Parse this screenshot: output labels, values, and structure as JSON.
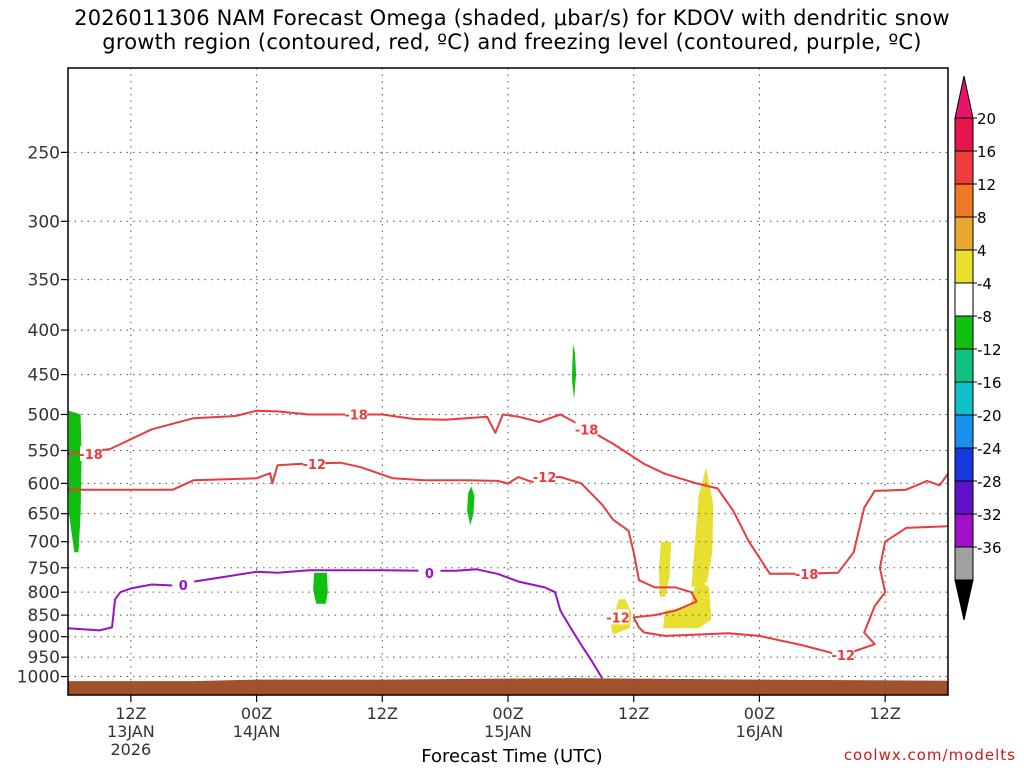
{
  "title": {
    "line1": "2026011306 NAM Forecast Omega (shaded, μbar/s) for KDOV with dendritic snow",
    "line2": "growth region (contoured, red, ºC) and freezing level (contoured, purple, ºC)"
  },
  "credit": "coolwx.com/modelts",
  "chart_data": {
    "type": "contour",
    "xlabel": "Forecast Time (UTC)",
    "x_axis": {
      "unit": "forecast hour from 2026-01-13 06Z",
      "range": [
        0,
        84
      ],
      "ticks": [
        {
          "hour": 6,
          "label": "12Z",
          "sub1": "13JAN",
          "sub2": "2026"
        },
        {
          "hour": 18,
          "label": "00Z",
          "sub1": "14JAN",
          "sub2": ""
        },
        {
          "hour": 30,
          "label": "12Z",
          "sub1": "",
          "sub2": ""
        },
        {
          "hour": 42,
          "label": "00Z",
          "sub1": "15JAN",
          "sub2": ""
        },
        {
          "hour": 54,
          "label": "12Z",
          "sub1": "",
          "sub2": ""
        },
        {
          "hour": 66,
          "label": "00Z",
          "sub1": "16JAN",
          "sub2": ""
        },
        {
          "hour": 78,
          "label": "12Z",
          "sub1": "",
          "sub2": ""
        }
      ]
    },
    "y_axis": {
      "unit": "hPa",
      "scale": "log",
      "inverted": true,
      "range": [
        1050,
        200
      ],
      "ticks": [
        250,
        300,
        350,
        400,
        450,
        500,
        550,
        600,
        650,
        700,
        750,
        800,
        850,
        900,
        950,
        1000
      ],
      "grid": "dotted"
    },
    "colorbar": {
      "labels": [
        "20",
        "16",
        "12",
        "8",
        "4",
        "-4",
        "-8",
        "-12",
        "-16",
        "-20",
        "-24",
        "-28",
        "-32",
        "-36"
      ],
      "colors": [
        "#e8144c",
        "#f03c3c",
        "#f07828",
        "#e8a830",
        "#e8e030",
        "#ffffff",
        "#10c010",
        "#10c080",
        "#10c0c8",
        "#1890f0",
        "#1838e0",
        "#6010c8",
        "#a010c8",
        "#a0a0a0"
      ],
      "top_color": "#e8146c",
      "bottom_color": "#000000"
    },
    "ground": {
      "color": "#a0522d",
      "pressure": [
        [
          0,
          1012
        ],
        [
          12,
          1012
        ],
        [
          18,
          1008
        ],
        [
          30,
          1008
        ],
        [
          40,
          1006
        ],
        [
          48,
          1004
        ],
        [
          56,
          1006
        ],
        [
          66,
          1008
        ],
        [
          76,
          1010
        ],
        [
          84,
          1011
        ]
      ]
    },
    "shaded_regions": [
      {
        "class": "-8..-4",
        "color": "#10c010",
        "points": [
          [
            0.1,
            495
          ],
          [
            1.2,
            500
          ],
          [
            1.3,
            560
          ],
          [
            1.2,
            650
          ],
          [
            1.0,
            720
          ],
          [
            0.6,
            720
          ],
          [
            0.1,
            650
          ]
        ]
      },
      {
        "class": "-8..-4",
        "color": "#10c010",
        "points": [
          [
            23.5,
            760
          ],
          [
            24.7,
            760
          ],
          [
            24.8,
            800
          ],
          [
            24.6,
            825
          ],
          [
            23.7,
            825
          ],
          [
            23.4,
            795
          ]
        ]
      },
      {
        "class": "-8..-4",
        "color": "#10c010",
        "points": [
          [
            38.2,
            615
          ],
          [
            38.5,
            605
          ],
          [
            38.8,
            620
          ],
          [
            38.7,
            650
          ],
          [
            38.4,
            670
          ],
          [
            38.1,
            645
          ]
        ]
      },
      {
        "class": "-8..-4",
        "color": "#10c010",
        "points": [
          [
            48.2,
            415
          ],
          [
            48.4,
            425
          ],
          [
            48.5,
            450
          ],
          [
            48.3,
            480
          ],
          [
            48.1,
            455
          ]
        ]
      },
      {
        "class": "4..8",
        "color": "#e8e030",
        "points": [
          [
            51.8,
            870
          ],
          [
            52.6,
            815
          ],
          [
            53.2,
            815
          ],
          [
            53.8,
            845
          ],
          [
            53.6,
            880
          ],
          [
            52.0,
            895
          ]
        ]
      },
      {
        "class": "4..8",
        "color": "#e8e030",
        "points": [
          [
            56.4,
            750
          ],
          [
            56.6,
            700
          ],
          [
            57.6,
            700
          ],
          [
            57.4,
            770
          ],
          [
            57.0,
            810
          ],
          [
            56.5,
            810
          ]
        ]
      },
      {
        "class": "4..8",
        "color": "#e8e030",
        "points": [
          [
            56.8,
            880
          ],
          [
            57.0,
            840
          ],
          [
            59.4,
            830
          ],
          [
            60.0,
            770
          ],
          [
            61.2,
            790
          ],
          [
            61.4,
            860
          ],
          [
            60.2,
            880
          ],
          [
            58.0,
            880
          ]
        ]
      },
      {
        "class": "4..8",
        "color": "#e8e030",
        "points": [
          [
            59.5,
            790
          ],
          [
            60.2,
            620
          ],
          [
            60.9,
            575
          ],
          [
            61.6,
            635
          ],
          [
            61.5,
            720
          ],
          [
            61.0,
            780
          ]
        ]
      }
    ],
    "contours": [
      {
        "name": "-18",
        "color": "#e83c3c",
        "labels": [
          [
            2.2,
            555
          ],
          [
            27.5,
            500
          ],
          [
            49.5,
            520
          ],
          [
            70.5,
            762
          ]
        ],
        "points": [
          [
            0.0,
            555
          ],
          [
            4.0,
            548
          ],
          [
            8.0,
            520
          ],
          [
            12.0,
            505
          ],
          [
            16.0,
            502
          ],
          [
            18.0,
            495
          ],
          [
            20.0,
            496
          ],
          [
            23.0,
            500
          ],
          [
            26.0,
            500
          ],
          [
            30.0,
            500
          ],
          [
            33.0,
            506
          ],
          [
            36.0,
            507
          ],
          [
            40.0,
            503
          ],
          [
            40.8,
            525
          ],
          [
            41.5,
            500
          ],
          [
            43.0,
            503
          ],
          [
            45.0,
            510
          ],
          [
            47.0,
            500
          ],
          [
            49.0,
            515
          ],
          [
            52.0,
            540
          ],
          [
            55.0,
            570
          ],
          [
            57.0,
            585
          ],
          [
            60.0,
            600
          ],
          [
            62.0,
            608
          ],
          [
            63.5,
            645
          ],
          [
            65.0,
            700
          ],
          [
            67.0,
            762
          ],
          [
            70.0,
            762
          ],
          [
            73.5,
            760
          ],
          [
            75.0,
            720
          ],
          [
            76.0,
            640
          ],
          [
            77.0,
            612
          ],
          [
            80.0,
            610
          ],
          [
            82.0,
            596
          ],
          [
            83.2,
            603
          ],
          [
            84.0,
            585
          ]
        ]
      },
      {
        "name": "-12",
        "color": "#e83c3c",
        "labels": [
          [
            23.5,
            570
          ],
          [
            45.5,
            590
          ],
          [
            52.5,
            855
          ],
          [
            74.0,
            945
          ]
        ],
        "points": [
          [
            0.0,
            610
          ],
          [
            10.0,
            610
          ],
          [
            12.0,
            595
          ],
          [
            14.0,
            594
          ],
          [
            18.0,
            592
          ],
          [
            19.3,
            584
          ],
          [
            19.5,
            600
          ],
          [
            20.0,
            572
          ],
          [
            22.0,
            570
          ],
          [
            26.0,
            568
          ],
          [
            28.0,
            575
          ],
          [
            31.0,
            592
          ],
          [
            34.0,
            595
          ],
          [
            38.0,
            595
          ],
          [
            41.0,
            596
          ],
          [
            42.0,
            600
          ],
          [
            43.0,
            590
          ],
          [
            44.0,
            596
          ],
          [
            44.5,
            598
          ],
          [
            45.0,
            592
          ],
          [
            47.0,
            590
          ],
          [
            49.0,
            600
          ],
          [
            51.0,
            635
          ],
          [
            52.0,
            660
          ],
          [
            53.5,
            680
          ],
          [
            54.0,
            720
          ],
          [
            54.5,
            775
          ],
          [
            56.0,
            790
          ],
          [
            58.0,
            790
          ],
          [
            59.5,
            800
          ],
          [
            60.0,
            820
          ],
          [
            58.0,
            840
          ],
          [
            56.0,
            850
          ],
          [
            54.0,
            855
          ],
          [
            54.5,
            878
          ],
          [
            55.0,
            890
          ],
          [
            57.0,
            898
          ],
          [
            60.0,
            895
          ],
          [
            63.0,
            892
          ],
          [
            66.0,
            898
          ],
          [
            70.0,
            920
          ],
          [
            73.0,
            940
          ],
          [
            75.0,
            936
          ],
          [
            77.0,
            918
          ],
          [
            76.0,
            890
          ],
          [
            76.5,
            860
          ],
          [
            77.0,
            830
          ],
          [
            78.0,
            800
          ],
          [
            77.5,
            750
          ],
          [
            78.0,
            700
          ],
          [
            80.0,
            675
          ],
          [
            84.0,
            672
          ]
        ]
      },
      {
        "name": "0",
        "color": "#9a10c8",
        "labels": [
          [
            11.0,
            785
          ],
          [
            34.5,
            760
          ]
        ],
        "points": [
          [
            0.0,
            880
          ],
          [
            3.0,
            885
          ],
          [
            4.2,
            878
          ],
          [
            4.5,
            815
          ],
          [
            5.0,
            800
          ],
          [
            6.0,
            792
          ],
          [
            8.0,
            784
          ],
          [
            10.0,
            786
          ],
          [
            12.0,
            778
          ],
          [
            15.0,
            768
          ],
          [
            18.0,
            758
          ],
          [
            20.0,
            760
          ],
          [
            23.0,
            755
          ],
          [
            26.0,
            755
          ],
          [
            30.0,
            755
          ],
          [
            34.0,
            756
          ],
          [
            37.0,
            756
          ],
          [
            39.0,
            753
          ],
          [
            41.0,
            762
          ],
          [
            43.0,
            778
          ],
          [
            45.5,
            790
          ],
          [
            46.5,
            800
          ],
          [
            47.0,
            840
          ],
          [
            48.0,
            880
          ],
          [
            49.0,
            920
          ],
          [
            50.0,
            960
          ],
          [
            51.0,
            1005
          ]
        ]
      }
    ]
  }
}
